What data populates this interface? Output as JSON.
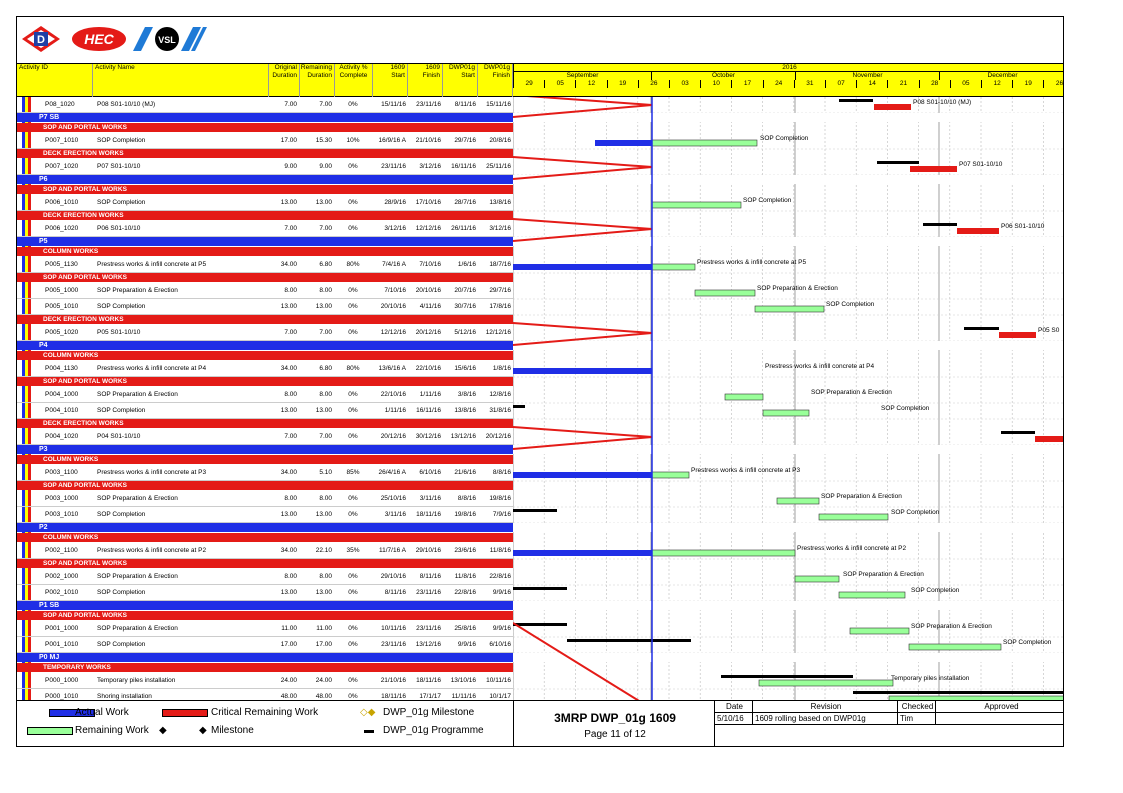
{
  "logos": {
    "d": "D",
    "hec": "HEC",
    "vsl": "VSL"
  },
  "columns": {
    "activity_id": "Activity ID",
    "activity_name": "Activity Name",
    "orig_dur": [
      "Original",
      "Duration"
    ],
    "rem_dur": [
      "Remaining",
      "Duration"
    ],
    "pct": [
      "Activity %",
      "Complete"
    ],
    "start1609": [
      "1609",
      "Start"
    ],
    "finish1609": [
      "1609",
      "Finish"
    ],
    "dwp_start": [
      "DWP01g",
      "Start"
    ],
    "dwp_finish": [
      "DWP01g",
      "Finish"
    ]
  },
  "timeline": {
    "year": "2016",
    "months": [
      "September",
      "October",
      "November",
      "December"
    ],
    "days": [
      "29",
      "05",
      "12",
      "19",
      "26",
      "03",
      "10",
      "17",
      "24",
      "31",
      "07",
      "14",
      "21",
      "28",
      "05",
      "12",
      "19",
      "26"
    ]
  },
  "rows": [
    {
      "t": "act",
      "id": "P08_1020",
      "name": "P08 S01-10/10 (MJ)",
      "od": "7.00",
      "rd": "7.00",
      "pct": "0%",
      "s": "15/11/16",
      "f": "23/11/16",
      "ds": "8/11/16",
      "df": "15/11/16"
    },
    {
      "t": "band",
      "c": "blue",
      "label": "P7 SB"
    },
    {
      "t": "band",
      "c": "red",
      "label": "SOP AND PORTAL WORKS"
    },
    {
      "t": "act",
      "id": "P007_1010",
      "name": "SOP Completion",
      "od": "17.00",
      "rd": "15.30",
      "pct": "10%",
      "s": "16/9/16 A",
      "f": "21/10/16",
      "ds": "29/7/16",
      "df": "20/8/16"
    },
    {
      "t": "band",
      "c": "red",
      "label": "DECK ERECTION WORKS"
    },
    {
      "t": "act",
      "id": "P007_1020",
      "name": "P07 S01-10/10",
      "od": "9.00",
      "rd": "9.00",
      "pct": "0%",
      "s": "23/11/16",
      "f": "3/12/16",
      "ds": "16/11/16",
      "df": "25/11/16"
    },
    {
      "t": "band",
      "c": "blue",
      "label": "P6"
    },
    {
      "t": "band",
      "c": "red",
      "label": "SOP AND PORTAL WORKS"
    },
    {
      "t": "act",
      "id": "P006_1010",
      "name": "SOP Completion",
      "od": "13.00",
      "rd": "13.00",
      "pct": "0%",
      "s": "28/9/16",
      "f": "17/10/16",
      "ds": "28/7/16",
      "df": "13/8/16"
    },
    {
      "t": "band",
      "c": "red",
      "label": "DECK ERECTION WORKS"
    },
    {
      "t": "act",
      "id": "P006_1020",
      "name": "P06 S01-10/10",
      "od": "7.00",
      "rd": "7.00",
      "pct": "0%",
      "s": "3/12/16",
      "f": "12/12/16",
      "ds": "26/11/16",
      "df": "3/12/16"
    },
    {
      "t": "band",
      "c": "blue",
      "label": "P5"
    },
    {
      "t": "band",
      "c": "red",
      "label": "COLUMN WORKS"
    },
    {
      "t": "act",
      "id": "P005_1130",
      "name": "Prestress works & infill concrete at P5",
      "od": "34.00",
      "rd": "6.80",
      "pct": "80%",
      "s": "7/4/16 A",
      "f": "7/10/16",
      "ds": "1/6/16",
      "df": "18/7/16"
    },
    {
      "t": "band",
      "c": "red",
      "label": "SOP AND PORTAL WORKS"
    },
    {
      "t": "act",
      "id": "P005_1000",
      "name": "SOP Preparation & Erection",
      "od": "8.00",
      "rd": "8.00",
      "pct": "0%",
      "s": "7/10/16",
      "f": "20/10/16",
      "ds": "20/7/16",
      "df": "29/7/16"
    },
    {
      "t": "act",
      "id": "P005_1010",
      "name": "SOP Completion",
      "od": "13.00",
      "rd": "13.00",
      "pct": "0%",
      "s": "20/10/16",
      "f": "4/11/16",
      "ds": "30/7/16",
      "df": "17/8/16"
    },
    {
      "t": "band",
      "c": "red",
      "label": "DECK ERECTION WORKS"
    },
    {
      "t": "act",
      "id": "P005_1020",
      "name": "P05 S01-10/10",
      "od": "7.00",
      "rd": "7.00",
      "pct": "0%",
      "s": "12/12/16",
      "f": "20/12/16",
      "ds": "5/12/16",
      "df": "12/12/16"
    },
    {
      "t": "band",
      "c": "blue",
      "label": "P4"
    },
    {
      "t": "band",
      "c": "red",
      "label": "COLUMN WORKS"
    },
    {
      "t": "act",
      "id": "P004_1130",
      "name": "Prestress works & infill concrete at P4",
      "od": "34.00",
      "rd": "6.80",
      "pct": "80%",
      "s": "13/6/16 A",
      "f": "22/10/16",
      "ds": "15/6/16",
      "df": "1/8/16"
    },
    {
      "t": "band",
      "c": "red",
      "label": "SOP AND PORTAL WORKS"
    },
    {
      "t": "act",
      "id": "P004_1000",
      "name": "SOP Preparation & Erection",
      "od": "8.00",
      "rd": "8.00",
      "pct": "0%",
      "s": "22/10/16",
      "f": "1/11/16",
      "ds": "3/8/16",
      "df": "12/8/16"
    },
    {
      "t": "act",
      "id": "P004_1010",
      "name": "SOP Completion",
      "od": "13.00",
      "rd": "13.00",
      "pct": "0%",
      "s": "1/11/16",
      "f": "16/11/16",
      "ds": "13/8/16",
      "df": "31/8/16"
    },
    {
      "t": "band",
      "c": "red",
      "label": "DECK ERECTION WORKS"
    },
    {
      "t": "act",
      "id": "P004_1020",
      "name": "P04 S01-10/10",
      "od": "7.00",
      "rd": "7.00",
      "pct": "0%",
      "s": "20/12/16",
      "f": "30/12/16",
      "ds": "13/12/16",
      "df": "20/12/16"
    },
    {
      "t": "band",
      "c": "blue",
      "label": "P3"
    },
    {
      "t": "band",
      "c": "red",
      "label": "COLUMN WORKS"
    },
    {
      "t": "act",
      "id": "P003_1100",
      "name": "Prestress works & infill concrete at P3",
      "od": "34.00",
      "rd": "5.10",
      "pct": "85%",
      "s": "26/4/16 A",
      "f": "6/10/16",
      "ds": "21/6/16",
      "df": "8/8/16"
    },
    {
      "t": "band",
      "c": "red",
      "label": "SOP AND PORTAL WORKS"
    },
    {
      "t": "act",
      "id": "P003_1000",
      "name": "SOP Preparation & Erection",
      "od": "8.00",
      "rd": "8.00",
      "pct": "0%",
      "s": "25/10/16",
      "f": "3/11/16",
      "ds": "8/8/16",
      "df": "19/8/16"
    },
    {
      "t": "act",
      "id": "P003_1010",
      "name": "SOP Completion",
      "od": "13.00",
      "rd": "13.00",
      "pct": "0%",
      "s": "3/11/16",
      "f": "18/11/16",
      "ds": "19/8/16",
      "df": "7/9/16"
    },
    {
      "t": "band",
      "c": "blue",
      "label": "P2"
    },
    {
      "t": "band",
      "c": "red",
      "label": "COLUMN WORKS"
    },
    {
      "t": "act",
      "id": "P002_1100",
      "name": "Prestress works & infill concrete at P2",
      "od": "34.00",
      "rd": "22.10",
      "pct": "35%",
      "s": "11/7/16 A",
      "f": "29/10/16",
      "ds": "23/6/16",
      "df": "11/8/16"
    },
    {
      "t": "band",
      "c": "red",
      "label": "SOP AND PORTAL WORKS"
    },
    {
      "t": "act",
      "id": "P002_1000",
      "name": "SOP Preparation & Erection",
      "od": "8.00",
      "rd": "8.00",
      "pct": "0%",
      "s": "29/10/16",
      "f": "8/11/16",
      "ds": "11/8/16",
      "df": "22/8/16"
    },
    {
      "t": "act",
      "id": "P002_1010",
      "name": "SOP Completion",
      "od": "13.00",
      "rd": "13.00",
      "pct": "0%",
      "s": "8/11/16",
      "f": "23/11/16",
      "ds": "22/8/16",
      "df": "9/9/16"
    },
    {
      "t": "band",
      "c": "blue",
      "label": "P1 SB"
    },
    {
      "t": "band",
      "c": "red",
      "label": "SOP AND PORTAL WORKS"
    },
    {
      "t": "act",
      "id": "P001_1000",
      "name": "SOP Preparation & Erection",
      "od": "11.00",
      "rd": "11.00",
      "pct": "0%",
      "s": "10/11/16",
      "f": "23/11/16",
      "ds": "25/8/16",
      "df": "9/9/16"
    },
    {
      "t": "act",
      "id": "P001_1010",
      "name": "SOP Completion",
      "od": "17.00",
      "rd": "17.00",
      "pct": "0%",
      "s": "23/11/16",
      "f": "13/12/16",
      "ds": "9/9/16",
      "df": "6/10/16"
    },
    {
      "t": "band",
      "c": "blue",
      "label": "P0 MJ"
    },
    {
      "t": "band",
      "c": "red",
      "label": "TEMPORARY WORKS"
    },
    {
      "t": "act",
      "id": "P000_1000",
      "name": "Temporary piles installation",
      "od": "24.00",
      "rd": "24.00",
      "pct": "0%",
      "s": "21/10/16",
      "f": "18/11/16",
      "ds": "13/10/16",
      "df": "10/11/16"
    },
    {
      "t": "act",
      "id": "P000_1010",
      "name": "Shoring installation",
      "od": "48.00",
      "rd": "48.00",
      "pct": "0%",
      "s": "18/11/16",
      "f": "17/1/17",
      "ds": "11/11/16",
      "df": "10/1/17"
    }
  ],
  "bar_labels": [
    "P08 S01-10/10 (MJ)",
    "SOP Completion",
    "P07 S01-10/10",
    "SOP Completion",
    "P06 S01-10/10",
    "Prestress works & infill concrete at P5",
    "SOP Preparation & Erection",
    "SOP Completion",
    "P05 S0",
    "Prestress works & infill concrete at P4",
    "SOP Preparation & Erection",
    "SOP Completion",
    "Prestress works & infill concrete at P3",
    "SOP Preparation & Erection",
    "SOP Completion",
    "Prestress works & infill concrete at P2",
    "SOP Preparation & Erection",
    "SOP Completion",
    "SOP Preparation & Erection",
    "SOP Completion",
    "Temporary piles installation"
  ],
  "legend": {
    "actual": "Actual Work",
    "critical": "Critical Remaining Work",
    "milestone_dwp": "DWP_01g Milestone",
    "remaining": "Remaining Work",
    "milestone": "Milestone",
    "programme": "DWP_01g Programme"
  },
  "title_block": {
    "title": "3MRP DWP_01g 1609",
    "page": "Page 11 of 12"
  },
  "revision": {
    "headers": [
      "Date",
      "Revision",
      "Checked",
      "Approved"
    ],
    "row": [
      "5/10/16",
      "1609 rolling based on DWP01g",
      "Tim",
      ""
    ]
  },
  "colors": {
    "actual": "#1f2ee6",
    "critical": "#e41b17",
    "remaining": "#99ff99",
    "header": "#ffff00",
    "programme": "#000000"
  }
}
